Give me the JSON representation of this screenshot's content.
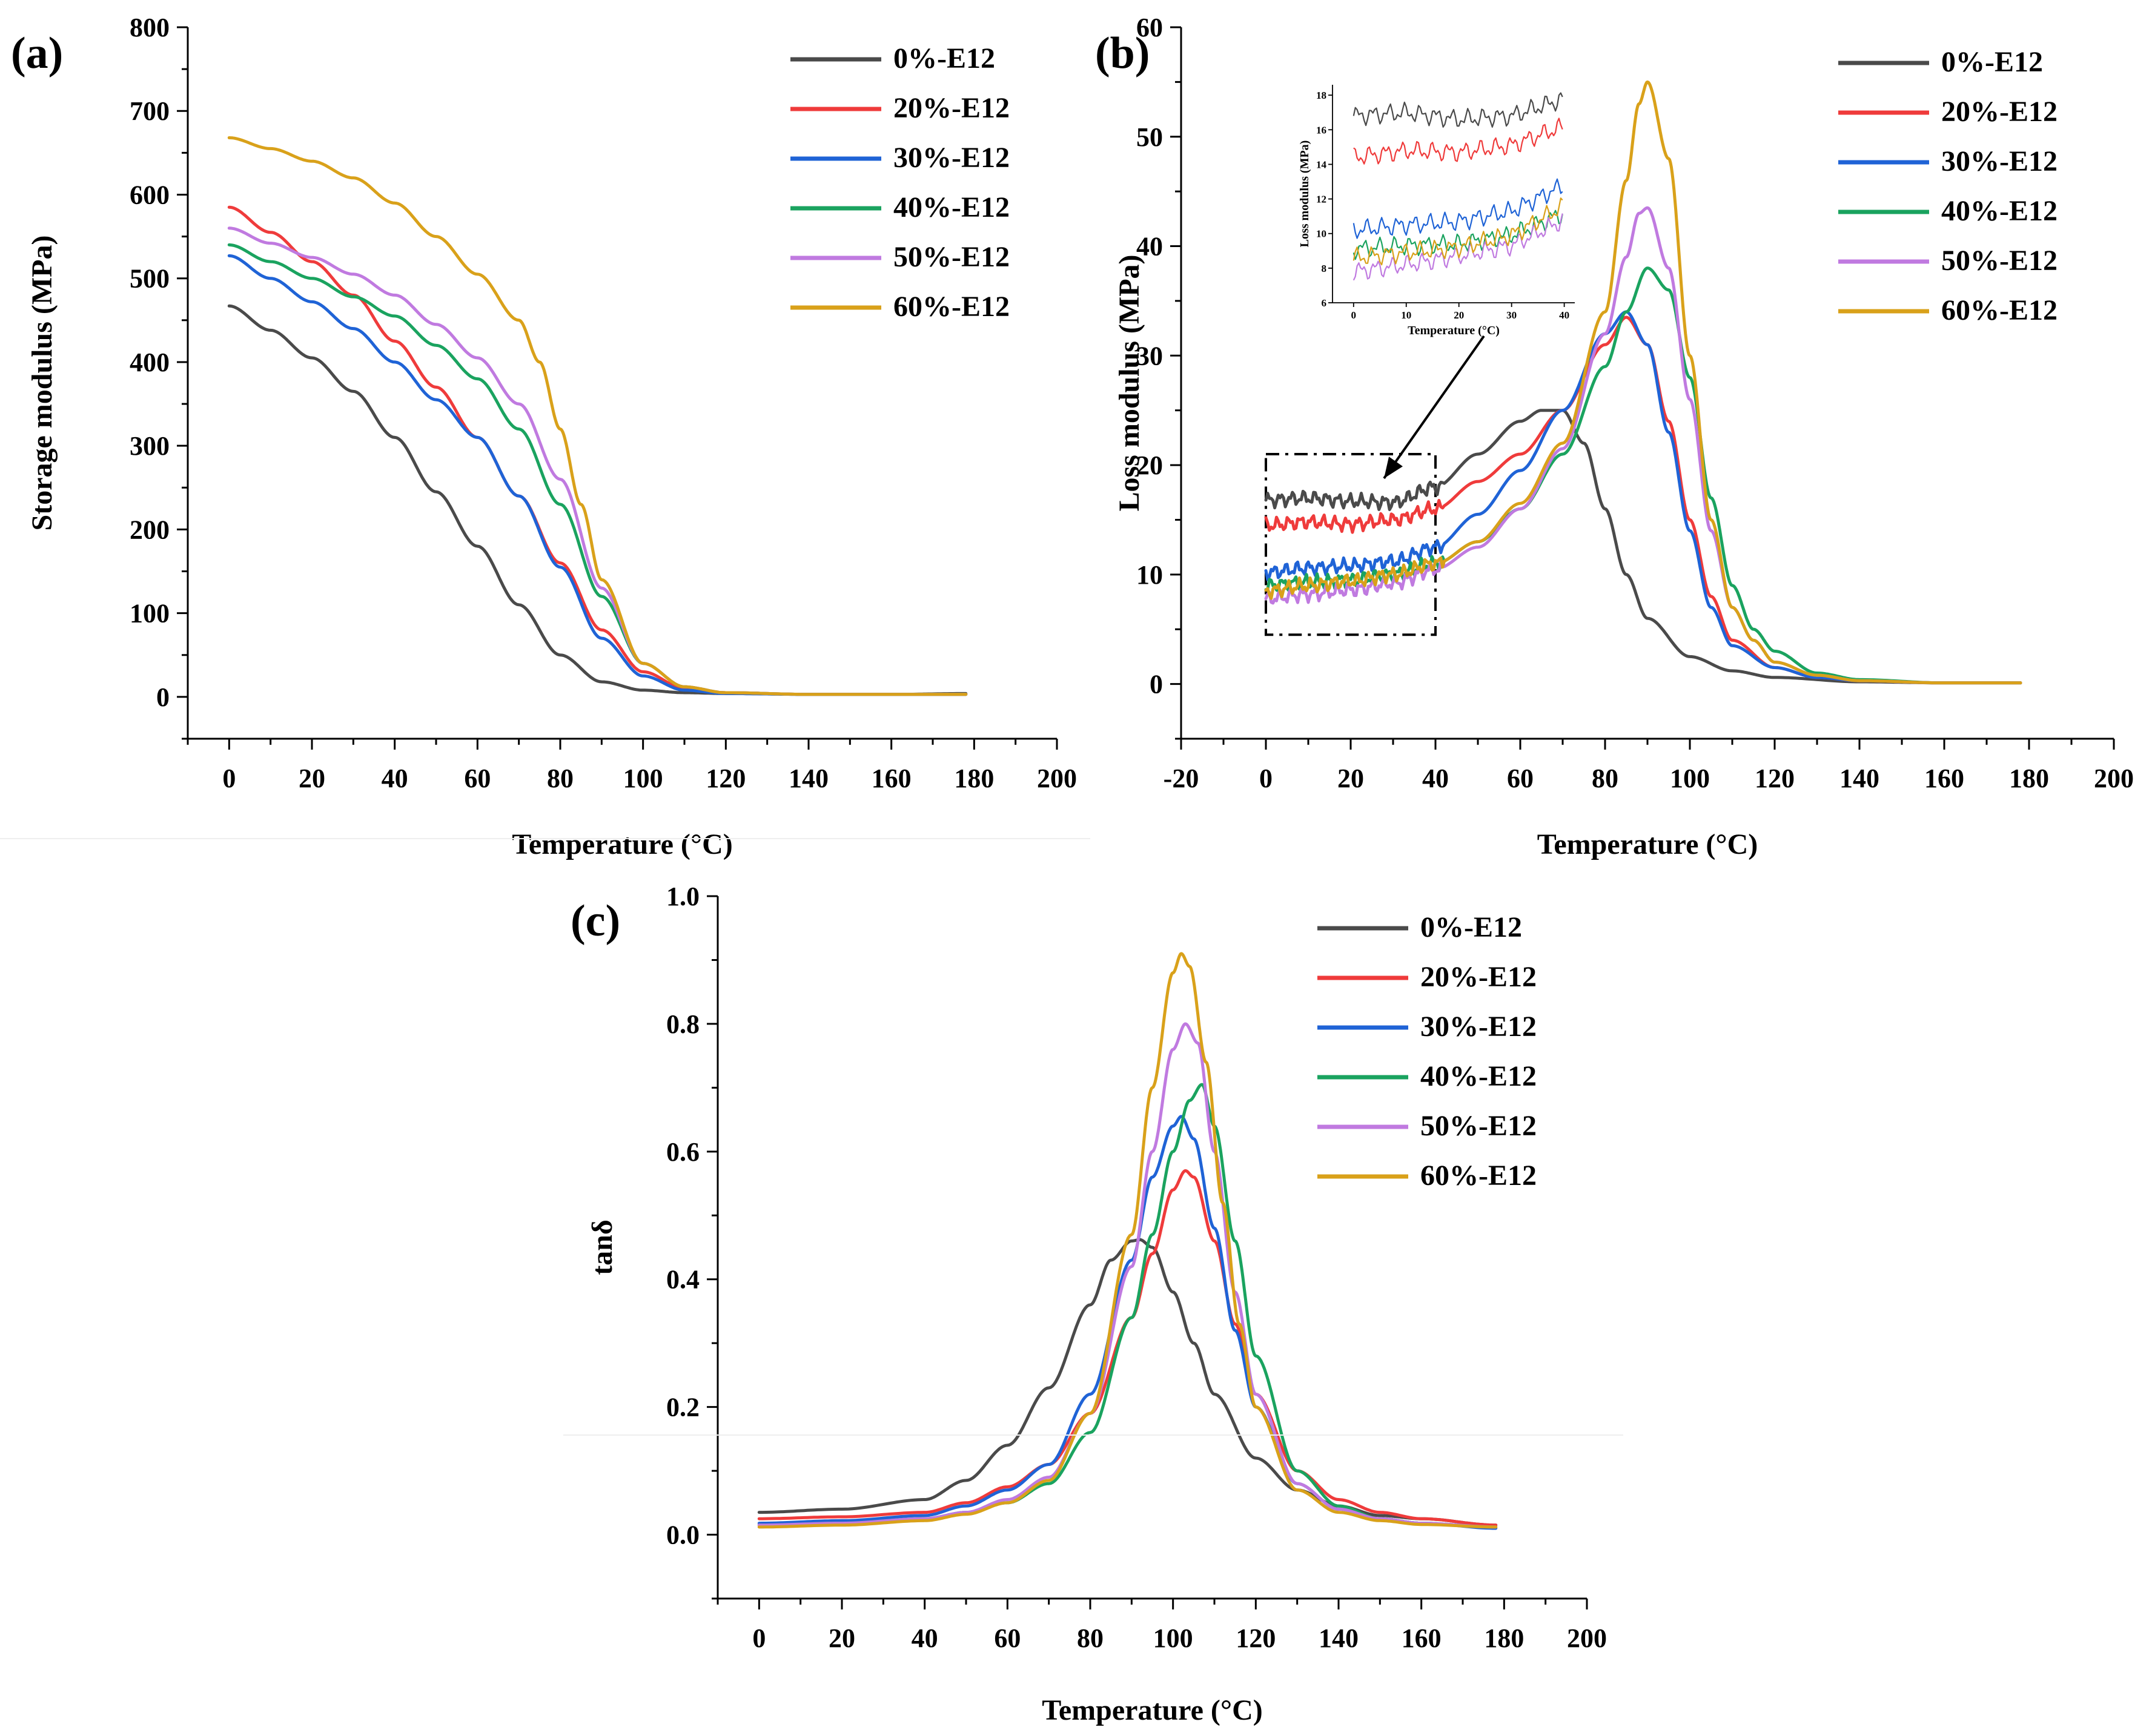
{
  "colors": {
    "0%-E12": "#4a4a4a",
    "20%-E12": "#ef3b3b",
    "30%-E12": "#1f63d6",
    "40%-E12": "#1aa35f",
    "50%-E12": "#c07ae0",
    "60%-E12": "#d9a11a"
  },
  "chart_data": [
    {
      "id": "a",
      "type": "line",
      "panel_label": "(a)",
      "xlabel": "Temperature (°C)",
      "ylabel": "Storage modulus (MPa)",
      "xlim": [
        -10,
        200
      ],
      "ylim": [
        -50,
        800
      ],
      "xticks": [
        0,
        20,
        40,
        60,
        80,
        100,
        120,
        140,
        160,
        180,
        200
      ],
      "yticks": [
        0,
        100,
        200,
        300,
        400,
        500,
        600,
        700,
        800
      ],
      "legend_position": "top-right",
      "series": [
        {
          "name": "0%-E12",
          "x": [
            0,
            10,
            20,
            30,
            40,
            50,
            60,
            70,
            80,
            90,
            100,
            110,
            120,
            140,
            160,
            178
          ],
          "y": [
            467,
            438,
            405,
            365,
            310,
            245,
            180,
            110,
            50,
            18,
            8,
            5,
            4,
            3,
            3,
            4
          ]
        },
        {
          "name": "20%-E12",
          "x": [
            0,
            10,
            20,
            30,
            40,
            50,
            60,
            70,
            80,
            90,
            100,
            110,
            120,
            140,
            160,
            178
          ],
          "y": [
            585,
            555,
            520,
            480,
            425,
            370,
            310,
            240,
            160,
            80,
            30,
            10,
            5,
            3,
            3,
            3
          ]
        },
        {
          "name": "30%-E12",
          "x": [
            0,
            10,
            20,
            30,
            40,
            50,
            60,
            70,
            80,
            90,
            100,
            110,
            120,
            140,
            160,
            178
          ],
          "y": [
            527,
            500,
            472,
            440,
            400,
            355,
            310,
            240,
            155,
            70,
            25,
            8,
            4,
            3,
            3,
            3
          ]
        },
        {
          "name": "40%-E12",
          "x": [
            0,
            10,
            20,
            30,
            40,
            50,
            60,
            70,
            80,
            90,
            100,
            110,
            120,
            140,
            160,
            178
          ],
          "y": [
            540,
            520,
            500,
            478,
            455,
            420,
            380,
            320,
            230,
            120,
            40,
            12,
            5,
            3,
            3,
            3
          ]
        },
        {
          "name": "50%-E12",
          "x": [
            0,
            10,
            20,
            30,
            40,
            50,
            60,
            70,
            80,
            90,
            100,
            110,
            120,
            140,
            160,
            178
          ],
          "y": [
            560,
            542,
            525,
            505,
            480,
            445,
            405,
            350,
            260,
            130,
            40,
            12,
            5,
            3,
            3,
            3
          ]
        },
        {
          "name": "60%-E12",
          "x": [
            0,
            10,
            20,
            30,
            40,
            50,
            60,
            70,
            75,
            80,
            85,
            90,
            100,
            110,
            120,
            140,
            160,
            178
          ],
          "y": [
            668,
            655,
            640,
            620,
            590,
            550,
            505,
            450,
            400,
            320,
            230,
            140,
            40,
            12,
            5,
            3,
            3,
            3
          ]
        }
      ]
    },
    {
      "id": "b",
      "type": "line",
      "panel_label": "(b)",
      "xlabel": "Temperature (°C)",
      "ylabel": "Loss modulus (MPa)",
      "xlim": [
        -20,
        200
      ],
      "ylim": [
        -5,
        60
      ],
      "xticks": [
        -20,
        0,
        20,
        40,
        60,
        80,
        100,
        120,
        140,
        160,
        180,
        200
      ],
      "yticks": [
        0,
        10,
        20,
        30,
        40,
        50,
        60
      ],
      "legend_position": "top-right",
      "series": [
        {
          "name": "0%-E12",
          "x": [
            0,
            10,
            20,
            30,
            40,
            50,
            60,
            65,
            70,
            75,
            80,
            85,
            90,
            100,
            110,
            120,
            140,
            160,
            178
          ],
          "y": [
            16.8,
            17.0,
            16.7,
            16.6,
            18.0,
            21.0,
            24.0,
            25.0,
            25.0,
            22.0,
            16.0,
            10.0,
            6.0,
            2.5,
            1.2,
            0.6,
            0.2,
            0.1,
            0.1
          ]
        },
        {
          "name": "20%-E12",
          "x": [
            0,
            10,
            20,
            30,
            40,
            50,
            60,
            70,
            80,
            85,
            90,
            95,
            100,
            105,
            110,
            120,
            130,
            140,
            160,
            178
          ],
          "y": [
            14.5,
            14.8,
            14.6,
            15.0,
            16.0,
            18.5,
            21.0,
            25.0,
            31.0,
            33.5,
            31.0,
            24.0,
            15.0,
            8.0,
            4.0,
            1.5,
            0.6,
            0.3,
            0.1,
            0.1
          ]
        },
        {
          "name": "30%-E12",
          "x": [
            0,
            10,
            20,
            30,
            40,
            50,
            60,
            70,
            80,
            85,
            90,
            95,
            100,
            105,
            110,
            120,
            130,
            140,
            160,
            178
          ],
          "y": [
            10.2,
            10.6,
            10.8,
            11.2,
            12.5,
            15.5,
            19.5,
            25.0,
            32.0,
            34.0,
            31.0,
            23.0,
            14.0,
            7.0,
            3.5,
            1.5,
            0.6,
            0.3,
            0.1,
            0.1
          ]
        },
        {
          "name": "40%-E12",
          "x": [
            0,
            10,
            20,
            30,
            40,
            50,
            60,
            70,
            80,
            85,
            90,
            95,
            100,
            105,
            110,
            115,
            120,
            130,
            140,
            160,
            178
          ],
          "y": [
            9.0,
            9.3,
            9.5,
            10.0,
            11.0,
            13.0,
            16.0,
            21.0,
            29.0,
            34.0,
            38.0,
            36.0,
            28.0,
            17.0,
            9.0,
            5.0,
            3.0,
            1.0,
            0.4,
            0.1,
            0.1
          ]
        },
        {
          "name": "50%-E12",
          "x": [
            0,
            10,
            20,
            30,
            40,
            50,
            60,
            70,
            80,
            85,
            88,
            90,
            95,
            100,
            105,
            110,
            115,
            120,
            130,
            140,
            160,
            178
          ],
          "y": [
            7.8,
            8.2,
            8.6,
            9.2,
            10.5,
            12.5,
            16.0,
            21.5,
            32.0,
            39.0,
            43.0,
            43.5,
            38.0,
            26.0,
            14.0,
            7.0,
            4.0,
            2.0,
            0.8,
            0.3,
            0.1,
            0.1
          ]
        },
        {
          "name": "60%-E12",
          "x": [
            0,
            10,
            20,
            30,
            40,
            50,
            60,
            70,
            80,
            85,
            88,
            90,
            95,
            100,
            105,
            110,
            115,
            120,
            130,
            140,
            160,
            178
          ],
          "y": [
            8.5,
            9.0,
            9.4,
            10.0,
            11.0,
            13.0,
            16.5,
            22.0,
            34.0,
            46.0,
            53.0,
            55.0,
            48.0,
            30.0,
            15.0,
            7.0,
            4.0,
            2.0,
            0.8,
            0.3,
            0.1,
            0.1
          ]
        }
      ],
      "annotations": {
        "zoom_box": {
          "x": [
            0,
            40
          ],
          "y": [
            4.5,
            21.0
          ]
        }
      },
      "inset": {
        "xlabel": "Temperature (°C)",
        "ylabel": "Loss modulus (MPa)",
        "xlim": [
          -4,
          42
        ],
        "ylim": [
          6,
          18.6
        ],
        "xticks": [
          0,
          10,
          20,
          30,
          40
        ],
        "yticks": [
          6,
          8,
          10,
          12,
          14,
          16,
          18
        ],
        "series": [
          {
            "name": "0%-E12",
            "x": [
              0,
              10,
              20,
              30,
              40
            ],
            "y": [
              16.8,
              17.0,
              16.6,
              16.8,
              17.8
            ]
          },
          {
            "name": "20%-E12",
            "x": [
              0,
              10,
              20,
              30,
              40
            ],
            "y": [
              14.4,
              14.8,
              14.7,
              15.1,
              16.2
            ]
          },
          {
            "name": "30%-E12",
            "x": [
              0,
              10,
              20,
              30,
              40
            ],
            "y": [
              10.2,
              10.5,
              10.7,
              11.3,
              12.8
            ]
          },
          {
            "name": "40%-E12",
            "x": [
              0,
              10,
              20,
              30,
              40
            ],
            "y": [
              9.1,
              9.3,
              9.4,
              9.9,
              11.2
            ]
          },
          {
            "name": "50%-E12",
            "x": [
              0,
              10,
              20,
              30,
              40
            ],
            "y": [
              7.8,
              8.2,
              8.7,
              9.3,
              10.8
            ]
          },
          {
            "name": "60%-E12",
            "x": [
              0,
              10,
              20,
              30,
              40
            ],
            "y": [
              8.6,
              8.9,
              9.2,
              9.9,
              11.6
            ]
          }
        ]
      }
    },
    {
      "id": "c",
      "type": "line",
      "panel_label": "(c)",
      "xlabel": "Temperature (°C)",
      "ylabel": "tanδ",
      "xlim": [
        -10,
        200
      ],
      "ylim": [
        -0.1,
        1.0
      ],
      "xticks": [
        0,
        20,
        40,
        60,
        80,
        100,
        120,
        140,
        160,
        180,
        200
      ],
      "yticks": [
        0.0,
        0.2,
        0.4,
        0.6,
        0.8,
        1.0
      ],
      "ytick_labels": [
        "0.0",
        "0.2",
        "0.4",
        "0.6",
        "0.8",
        "1.0"
      ],
      "legend_position": "top-right",
      "series": [
        {
          "name": "0%-E12",
          "x": [
            0,
            20,
            40,
            50,
            60,
            70,
            80,
            85,
            90,
            92,
            95,
            100,
            105,
            110,
            120,
            130,
            140,
            150,
            160,
            178
          ],
          "y": [
            0.035,
            0.04,
            0.055,
            0.085,
            0.14,
            0.23,
            0.36,
            0.43,
            0.46,
            0.462,
            0.45,
            0.38,
            0.3,
            0.22,
            0.12,
            0.07,
            0.045,
            0.03,
            0.025,
            0.015
          ]
        },
        {
          "name": "20%-E12",
          "x": [
            0,
            20,
            40,
            50,
            60,
            70,
            80,
            90,
            95,
            100,
            103,
            105,
            110,
            115,
            120,
            130,
            140,
            150,
            160,
            178
          ],
          "y": [
            0.025,
            0.028,
            0.035,
            0.05,
            0.075,
            0.11,
            0.19,
            0.34,
            0.44,
            0.54,
            0.57,
            0.56,
            0.46,
            0.33,
            0.22,
            0.1,
            0.055,
            0.035,
            0.025,
            0.015
          ]
        },
        {
          "name": "30%-E12",
          "x": [
            0,
            20,
            40,
            50,
            60,
            70,
            80,
            90,
            95,
            100,
            102,
            105,
            110,
            115,
            120,
            130,
            140,
            150,
            160,
            178
          ],
          "y": [
            0.018,
            0.022,
            0.03,
            0.045,
            0.07,
            0.11,
            0.22,
            0.43,
            0.56,
            0.64,
            0.655,
            0.62,
            0.48,
            0.32,
            0.2,
            0.08,
            0.04,
            0.025,
            0.018,
            0.01
          ]
        },
        {
          "name": "40%-E12",
          "x": [
            0,
            20,
            40,
            50,
            60,
            70,
            80,
            90,
            95,
            100,
            104,
            107,
            110,
            115,
            120,
            130,
            140,
            150,
            160,
            178
          ],
          "y": [
            0.015,
            0.018,
            0.025,
            0.035,
            0.05,
            0.08,
            0.16,
            0.34,
            0.47,
            0.6,
            0.68,
            0.705,
            0.64,
            0.46,
            0.28,
            0.1,
            0.045,
            0.025,
            0.018,
            0.012
          ]
        },
        {
          "name": "50%-E12",
          "x": [
            0,
            20,
            40,
            50,
            60,
            70,
            80,
            90,
            95,
            100,
            103,
            106,
            110,
            115,
            120,
            130,
            140,
            150,
            160,
            178
          ],
          "y": [
            0.015,
            0.018,
            0.025,
            0.035,
            0.055,
            0.09,
            0.19,
            0.42,
            0.6,
            0.76,
            0.8,
            0.77,
            0.6,
            0.38,
            0.22,
            0.08,
            0.04,
            0.025,
            0.018,
            0.012
          ]
        },
        {
          "name": "60%-E12",
          "x": [
            0,
            20,
            40,
            50,
            60,
            70,
            80,
            90,
            95,
            100,
            102,
            104,
            108,
            112,
            116,
            120,
            130,
            140,
            150,
            160,
            178
          ],
          "y": [
            0.012,
            0.015,
            0.022,
            0.032,
            0.05,
            0.085,
            0.19,
            0.47,
            0.7,
            0.88,
            0.91,
            0.89,
            0.74,
            0.52,
            0.33,
            0.2,
            0.07,
            0.035,
            0.022,
            0.016,
            0.012
          ]
        }
      ]
    }
  ]
}
